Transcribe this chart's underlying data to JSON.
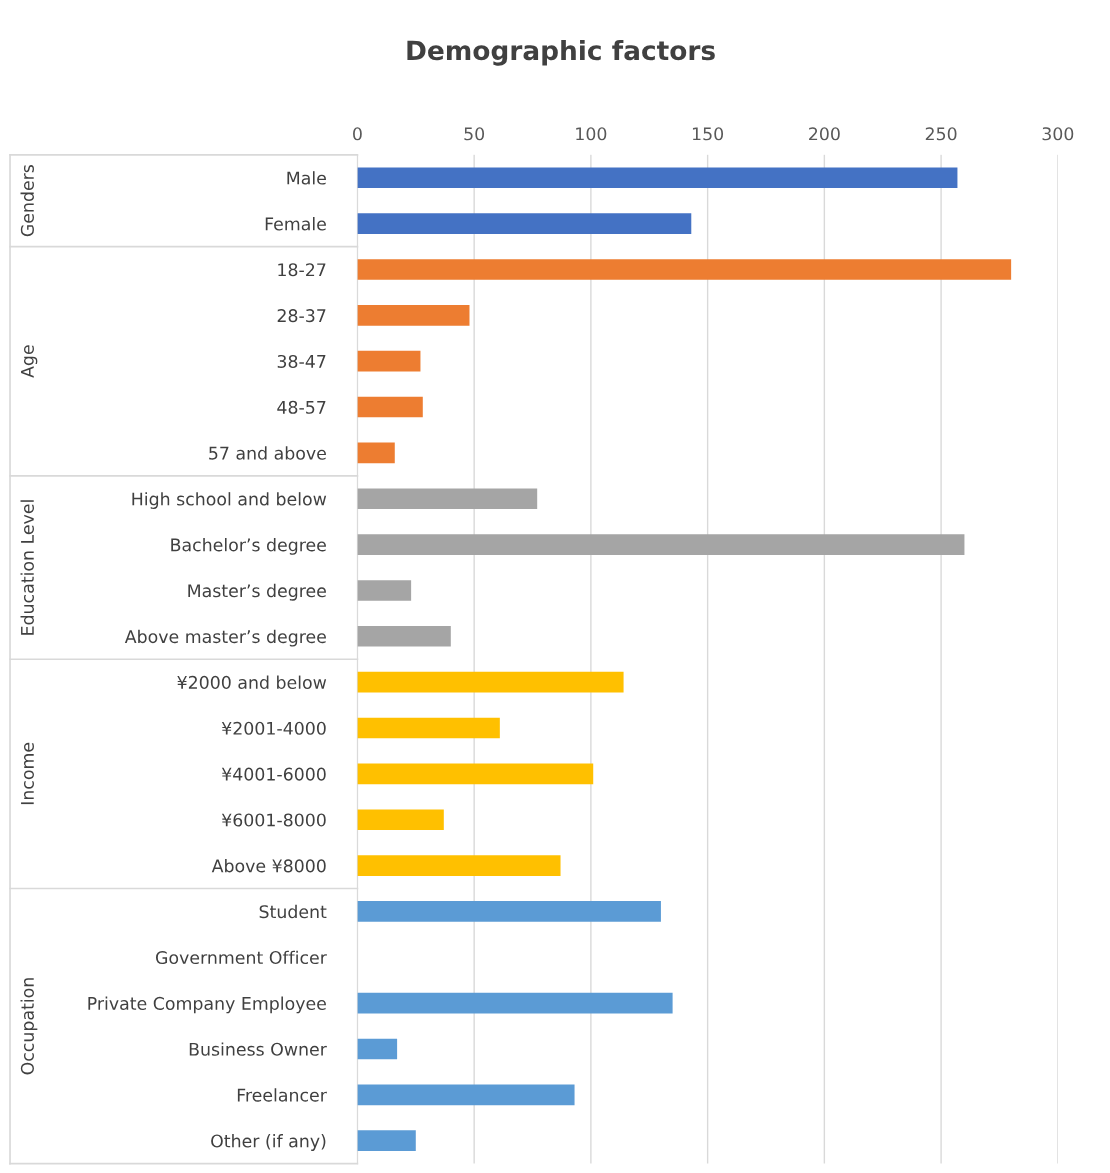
{
  "chart_data": {
    "type": "bar",
    "orientation": "horizontal",
    "title": "Demographic factors",
    "categories": [
      "Male",
      "Female",
      "18-27",
      "28-37",
      "38-47",
      "48-57",
      "57 and above",
      "High school and below",
      "Bachelor’s degree",
      "Master’s degree",
      "Above master’s degree",
      "¥2000 and below",
      "¥2001-4000",
      "¥4001-6000",
      "¥6001-8000",
      "Above ¥8000",
      "Student",
      "Government Officer",
      "Private Company Employee",
      "Business Owner",
      "Freelancer",
      "Other (if any)"
    ],
    "series": [
      {
        "color": "#4472c4",
        "values": [
          257,
          143,
          null,
          null,
          null,
          null,
          null,
          null,
          null,
          null,
          null,
          null,
          null,
          null,
          null,
          null,
          null,
          null,
          null,
          null,
          null,
          null
        ]
      },
      {
        "color": "#ed7d31",
        "values": [
          null,
          null,
          280,
          48,
          27,
          28,
          16,
          null,
          null,
          null,
          null,
          null,
          null,
          null,
          null,
          null,
          null,
          null,
          null,
          null,
          null,
          null
        ]
      },
      {
        "color": "#a5a5a5",
        "values": [
          null,
          null,
          null,
          null,
          null,
          null,
          null,
          77,
          260,
          23,
          40,
          null,
          null,
          null,
          null,
          null,
          null,
          null,
          null,
          null,
          null,
          null
        ]
      },
      {
        "color": "#ffc000",
        "values": [
          null,
          null,
          null,
          null,
          null,
          null,
          null,
          null,
          null,
          null,
          null,
          114,
          61,
          101,
          37,
          87,
          null,
          null,
          null,
          null,
          null,
          null
        ]
      },
      {
        "color": "#5b9bd5",
        "values": [
          null,
          null,
          null,
          null,
          null,
          null,
          null,
          null,
          null,
          null,
          null,
          null,
          null,
          null,
          null,
          null,
          130,
          0,
          135,
          17,
          93,
          25
        ]
      }
    ],
    "annotations": [
      "Genders",
      "Age",
      "Education Level",
      "Income",
      "Occupation"
    ],
    "xlim": [
      0,
      300
    ],
    "xticks": [
      0,
      50,
      100,
      150,
      200,
      250,
      300
    ],
    "grid": "x",
    "legend": false
  }
}
